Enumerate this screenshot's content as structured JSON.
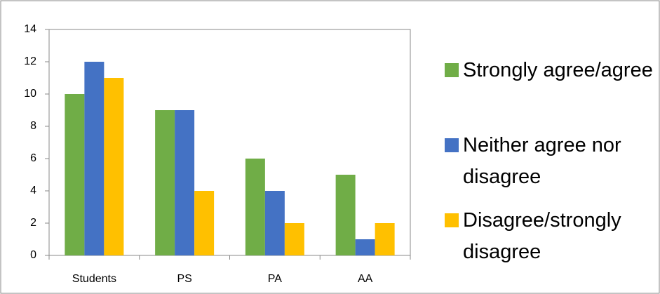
{
  "chart_data": {
    "type": "bar",
    "categories": [
      "Students",
      "PS",
      "PA",
      "AA"
    ],
    "series": [
      {
        "name": "Strongly agree/agree",
        "color": "#70ad47",
        "values": [
          10,
          9,
          6,
          5
        ]
      },
      {
        "name": "Neither agree nor disagree",
        "color": "#4472c4",
        "values": [
          12,
          9,
          4,
          1
        ]
      },
      {
        "name": "Disagree/strongly disagree",
        "color": "#ffc000",
        "values": [
          11,
          4,
          2,
          2
        ]
      }
    ],
    "ylim": [
      0,
      14
    ],
    "yticks": [
      0,
      2,
      4,
      6,
      8,
      10,
      12,
      14
    ],
    "grid": false,
    "legend": "right"
  }
}
